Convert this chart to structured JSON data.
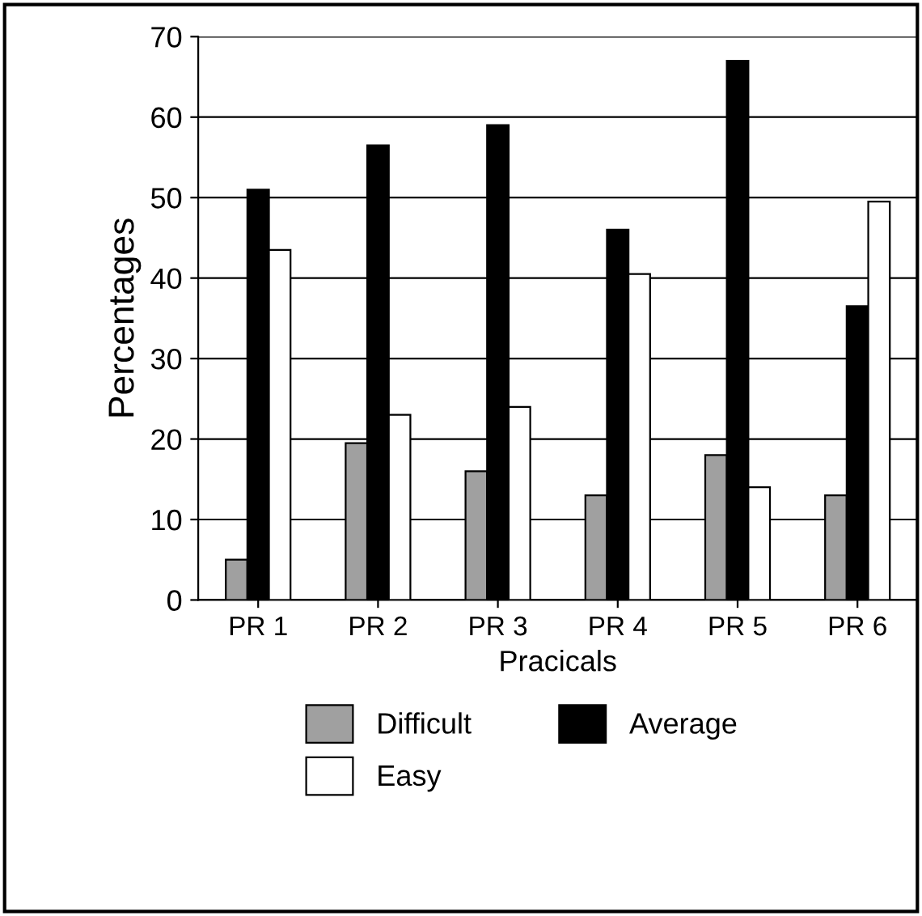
{
  "chart_data": {
    "type": "bar",
    "xlabel": "Pracicals",
    "ylabel": "Percentages",
    "categories": [
      "PR 1",
      "PR 2",
      "PR 3",
      "PR 4",
      "PR 5",
      "PR 6"
    ],
    "series": [
      {
        "name": "Difficult",
        "color": "#a0a0a0",
        "values": [
          5,
          19.5,
          16,
          13,
          18,
          13
        ]
      },
      {
        "name": "Average",
        "color": "#000000",
        "values": [
          51,
          56.5,
          59,
          46,
          67,
          36.5
        ]
      },
      {
        "name": "Easy",
        "color": "#ffffff",
        "values": [
          43.5,
          23,
          24,
          40.5,
          14,
          49.5
        ]
      }
    ],
    "ylim": [
      0,
      70
    ],
    "yticks": [
      0,
      10,
      20,
      30,
      40,
      50,
      60,
      70
    ],
    "grid": "y",
    "legend": "bottom"
  }
}
